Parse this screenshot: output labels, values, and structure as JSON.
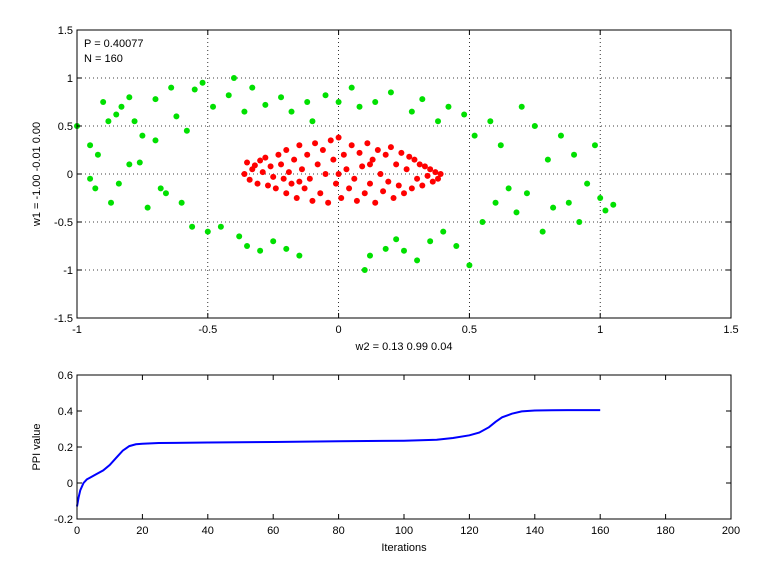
{
  "chart_data": [
    {
      "type": "scatter",
      "xlabel": "w2 = 0.13  0.99  0.04",
      "ylabel": "w1 = -1.00  -0.01  0.00",
      "xlim": [
        -1,
        1.5
      ],
      "ylim": [
        -1.5,
        1.5
      ],
      "xticks": [
        "-1",
        "-0.5",
        "0",
        "0.5",
        "1",
        "1.5"
      ],
      "yticks": [
        "-1.5",
        "-1",
        "-0.5",
        "0",
        "0.5",
        "1",
        "1.5"
      ],
      "xtick_values": [
        -1,
        -0.5,
        0,
        0.5,
        1,
        1.5
      ],
      "ytick_values": [
        -1.5,
        -1,
        -0.5,
        0,
        0.5,
        1,
        1.5
      ],
      "grid": true,
      "annotations": [
        "P = 0.40077",
        "N = 160"
      ],
      "series": [
        {
          "color": "#ff0000",
          "points": [
            [
              -0.35,
              0.12
            ],
            [
              -0.33,
              0.05
            ],
            [
              -0.36,
              0.0
            ],
            [
              -0.34,
              -0.06
            ],
            [
              -0.31,
              -0.1
            ],
            [
              -0.3,
              0.14
            ],
            [
              -0.29,
              0.02
            ],
            [
              -0.27,
              -0.12
            ],
            [
              -0.28,
              0.17
            ],
            [
              -0.26,
              0.08
            ],
            [
              -0.25,
              -0.03
            ],
            [
              -0.24,
              -0.15
            ],
            [
              -0.23,
              0.2
            ],
            [
              -0.22,
              0.1
            ],
            [
              -0.21,
              -0.05
            ],
            [
              -0.2,
              -0.2
            ],
            [
              -0.2,
              0.25
            ],
            [
              -0.19,
              0.02
            ],
            [
              -0.18,
              -0.1
            ],
            [
              -0.17,
              0.15
            ],
            [
              -0.16,
              -0.25
            ],
            [
              -0.15,
              0.3
            ],
            [
              -0.14,
              0.05
            ],
            [
              -0.13,
              -0.15
            ],
            [
              -0.12,
              0.2
            ],
            [
              -0.11,
              -0.05
            ],
            [
              -0.1,
              -0.28
            ],
            [
              -0.09,
              0.32
            ],
            [
              -0.08,
              0.1
            ],
            [
              -0.07,
              -0.2
            ],
            [
              -0.06,
              0.25
            ],
            [
              -0.05,
              0.0
            ],
            [
              -0.04,
              -0.3
            ],
            [
              -0.03,
              0.35
            ],
            [
              -0.02,
              0.15
            ],
            [
              -0.01,
              -0.1
            ],
            [
              0.0,
              0.38
            ],
            [
              0.01,
              -0.25
            ],
            [
              0.02,
              0.2
            ],
            [
              0.03,
              0.05
            ],
            [
              0.04,
              -0.15
            ],
            [
              0.05,
              0.3
            ],
            [
              0.06,
              -0.05
            ],
            [
              0.07,
              -0.28
            ],
            [
              0.08,
              0.22
            ],
            [
              0.09,
              0.08
            ],
            [
              0.1,
              -0.2
            ],
            [
              0.11,
              0.32
            ],
            [
              0.12,
              -0.1
            ],
            [
              0.13,
              0.15
            ],
            [
              0.14,
              -0.3
            ],
            [
              0.15,
              0.25
            ],
            [
              0.16,
              0.0
            ],
            [
              0.17,
              -0.18
            ],
            [
              0.18,
              0.2
            ],
            [
              0.19,
              -0.08
            ],
            [
              0.2,
              0.28
            ],
            [
              0.21,
              -0.25
            ],
            [
              0.22,
              0.1
            ],
            [
              0.23,
              -0.12
            ],
            [
              0.24,
              0.22
            ],
            [
              0.25,
              -0.2
            ],
            [
              0.26,
              0.05
            ],
            [
              0.27,
              0.18
            ],
            [
              0.28,
              -0.15
            ],
            [
              0.29,
              0.15
            ],
            [
              0.3,
              -0.05
            ],
            [
              0.31,
              0.1
            ],
            [
              0.32,
              -0.12
            ],
            [
              0.33,
              0.08
            ],
            [
              0.34,
              -0.02
            ],
            [
              0.35,
              0.05
            ],
            [
              0.36,
              -0.08
            ],
            [
              0.37,
              0.02
            ],
            [
              0.38,
              -0.05
            ],
            [
              0.39,
              0.0
            ],
            [
              -0.32,
              0.09
            ],
            [
              -0.15,
              -0.08
            ],
            [
              0.0,
              0.0
            ],
            [
              0.12,
              0.1
            ]
          ]
        },
        {
          "color": "#00e000",
          "points": [
            [
              -1.0,
              0.5
            ],
            [
              -0.95,
              0.3
            ],
            [
              -0.95,
              -0.05
            ],
            [
              -0.93,
              -0.15
            ],
            [
              -0.92,
              0.2
            ],
            [
              -0.9,
              0.75
            ],
            [
              -0.88,
              0.55
            ],
            [
              -0.87,
              -0.3
            ],
            [
              -0.85,
              0.62
            ],
            [
              -0.84,
              -0.1
            ],
            [
              -0.83,
              0.7
            ],
            [
              -0.8,
              0.8
            ],
            [
              -0.8,
              0.1
            ],
            [
              -0.78,
              0.55
            ],
            [
              -0.76,
              0.12
            ],
            [
              -0.75,
              0.4
            ],
            [
              -0.73,
              -0.35
            ],
            [
              -0.7,
              0.78
            ],
            [
              -0.7,
              0.35
            ],
            [
              -0.68,
              -0.15
            ],
            [
              -0.66,
              -0.2
            ],
            [
              -0.64,
              0.9
            ],
            [
              -0.62,
              0.6
            ],
            [
              -0.6,
              -0.3
            ],
            [
              -0.58,
              0.45
            ],
            [
              -0.56,
              -0.55
            ],
            [
              -0.55,
              0.88
            ],
            [
              -0.52,
              0.95
            ],
            [
              -0.5,
              -0.6
            ],
            [
              -0.48,
              0.7
            ],
            [
              -0.45,
              -0.55
            ],
            [
              -0.42,
              0.82
            ],
            [
              -0.4,
              1.0
            ],
            [
              -0.38,
              -0.65
            ],
            [
              -0.36,
              0.65
            ],
            [
              -0.35,
              -0.75
            ],
            [
              -0.33,
              0.9
            ],
            [
              -0.3,
              -0.8
            ],
            [
              -0.28,
              0.72
            ],
            [
              -0.25,
              -0.7
            ],
            [
              -0.22,
              0.8
            ],
            [
              -0.2,
              -0.78
            ],
            [
              -0.18,
              0.65
            ],
            [
              -0.15,
              -0.85
            ],
            [
              -0.12,
              0.75
            ],
            [
              -0.1,
              0.55
            ],
            [
              -0.05,
              0.82
            ],
            [
              0.0,
              0.75
            ],
            [
              0.05,
              0.9
            ],
            [
              0.08,
              0.7
            ],
            [
              0.1,
              -1.0
            ],
            [
              0.12,
              -0.85
            ],
            [
              0.14,
              0.75
            ],
            [
              0.18,
              -0.78
            ],
            [
              0.2,
              0.85
            ],
            [
              0.22,
              -0.68
            ],
            [
              0.25,
              -0.8
            ],
            [
              0.28,
              0.65
            ],
            [
              0.3,
              -0.9
            ],
            [
              0.32,
              0.78
            ],
            [
              0.35,
              -0.7
            ],
            [
              0.38,
              0.55
            ],
            [
              0.4,
              -0.6
            ],
            [
              0.42,
              0.7
            ],
            [
              0.45,
              -0.75
            ],
            [
              0.48,
              0.62
            ],
            [
              0.5,
              -0.95
            ],
            [
              0.52,
              0.4
            ],
            [
              0.55,
              -0.5
            ],
            [
              0.58,
              0.55
            ],
            [
              0.6,
              -0.3
            ],
            [
              0.62,
              0.3
            ],
            [
              0.65,
              -0.15
            ],
            [
              0.68,
              -0.4
            ],
            [
              0.7,
              0.7
            ],
            [
              0.72,
              -0.2
            ],
            [
              0.75,
              0.5
            ],
            [
              0.78,
              -0.6
            ],
            [
              0.8,
              0.15
            ],
            [
              0.82,
              -0.35
            ],
            [
              0.85,
              0.4
            ],
            [
              0.88,
              -0.3
            ],
            [
              0.9,
              0.2
            ],
            [
              0.92,
              -0.5
            ],
            [
              0.95,
              -0.1
            ],
            [
              0.98,
              0.3
            ],
            [
              1.0,
              -0.25
            ],
            [
              1.02,
              -0.38
            ],
            [
              1.05,
              -0.32
            ]
          ]
        }
      ]
    },
    {
      "type": "line",
      "xlabel": "Iterations",
      "ylabel": "PPI value",
      "xlim": [
        0,
        200
      ],
      "ylim": [
        -0.2,
        0.6
      ],
      "xticks": [
        "0",
        "20",
        "40",
        "60",
        "80",
        "100",
        "120",
        "140",
        "160",
        "180",
        "200"
      ],
      "yticks": [
        "-0.2",
        "0",
        "0.2",
        "0.4",
        "0.6"
      ],
      "xtick_values": [
        0,
        20,
        40,
        60,
        80,
        100,
        120,
        140,
        160,
        180,
        200
      ],
      "ytick_values": [
        -0.2,
        0,
        0.2,
        0.4,
        0.6
      ],
      "grid": false,
      "series": [
        {
          "color": "#0000ff",
          "x": [
            0,
            0.5,
            1,
            2,
            3,
            4,
            6,
            8,
            10,
            12,
            14,
            16,
            18,
            20,
            25,
            30,
            40,
            60,
            80,
            100,
            110,
            115,
            120,
            123,
            126,
            128,
            130,
            133,
            136,
            140,
            145,
            150,
            160
          ],
          "y": [
            -0.13,
            -0.08,
            -0.04,
            0.0,
            0.02,
            0.03,
            0.05,
            0.07,
            0.1,
            0.14,
            0.18,
            0.205,
            0.215,
            0.218,
            0.222,
            0.223,
            0.225,
            0.228,
            0.232,
            0.235,
            0.24,
            0.25,
            0.265,
            0.28,
            0.31,
            0.34,
            0.365,
            0.385,
            0.398,
            0.403,
            0.404,
            0.405,
            0.405
          ]
        }
      ]
    }
  ]
}
